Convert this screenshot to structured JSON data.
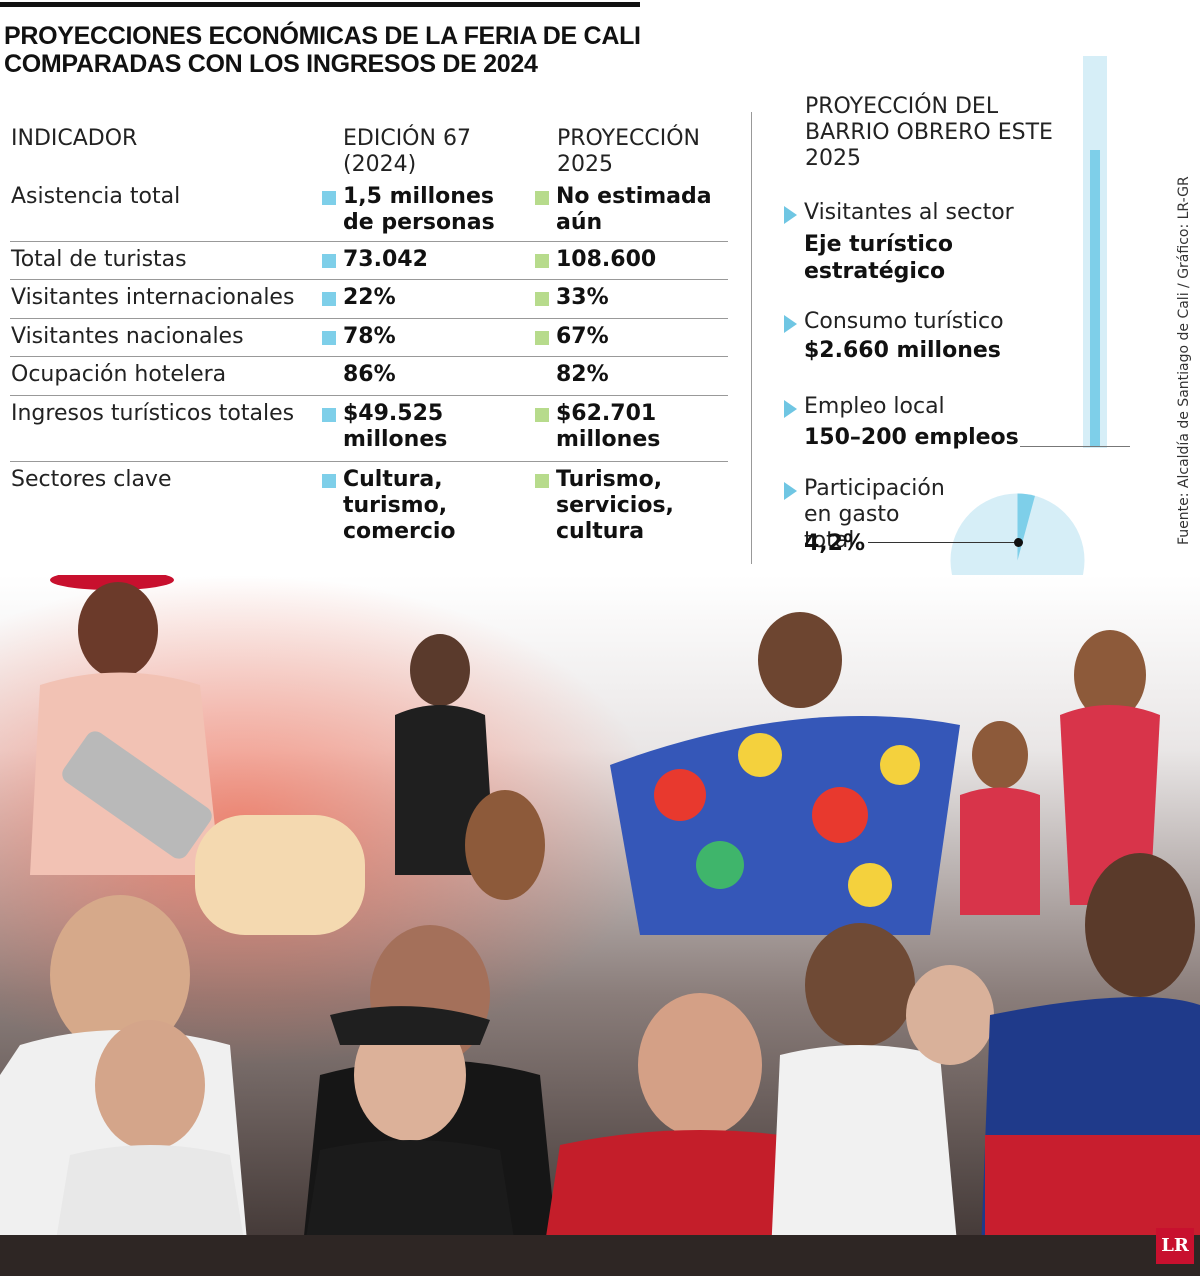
{
  "title": "PROYECCIONES ECONÓMICAS DE LA FERIA DE CALI COMPARADAS CON LOS INGRESOS DE 2024",
  "table": {
    "headers": {
      "indicator": "INDICADOR",
      "col2024": "EDICIÓN 67 (2024)",
      "col2025": "PROYECCIÓN 2025"
    },
    "rows": [
      {
        "indicator": "Asistencia total",
        "v2024": "1,5 millones de personas",
        "v2025": "No estimada aún",
        "marked": true
      },
      {
        "indicator": "Total de turistas",
        "v2024": "73.042",
        "v2025": "108.600",
        "marked": true
      },
      {
        "indicator": "Visitantes internacionales",
        "v2024": "22%",
        "v2025": "33%",
        "marked": true
      },
      {
        "indicator": "Visitantes nacionales",
        "v2024": "78%",
        "v2025": "67%",
        "marked": true
      },
      {
        "indicator": "Ocupación hotelera",
        "v2024": "86%",
        "v2025": "82%",
        "marked": false
      },
      {
        "indicator": "Ingresos turísticos totales",
        "v2024": "$49.525 millones",
        "v2025": "$62.701 millones",
        "marked": true
      },
      {
        "indicator": "Sectores clave",
        "v2024": "Cultura, turismo, comercio",
        "v2025": "Turismo, servicios, cultura",
        "marked": true
      }
    ],
    "colors": {
      "col2024": "#7ecfe9",
      "col2025": "#b7db8c"
    }
  },
  "sidebar": {
    "title": "PROYECCIÓN DEL BARRIO OBRERO ESTE 2025",
    "items": [
      {
        "label": "Visitantes al sector",
        "value": "Eje turístico estratégico"
      },
      {
        "label": "Consumo turístico",
        "value": "$2.660 millones"
      },
      {
        "label": "Empleo local",
        "value": "150–200 empleos"
      },
      {
        "label": "Participación en gasto total",
        "value": "4,2%"
      }
    ],
    "gauge_fraction": 0.76,
    "pie_share": 0.042,
    "accent": "#7ecfe9"
  },
  "source": "Fuente: Alcaldía de Santiago de Cali  / Gráfico: LR-GR",
  "logo": "LR"
}
